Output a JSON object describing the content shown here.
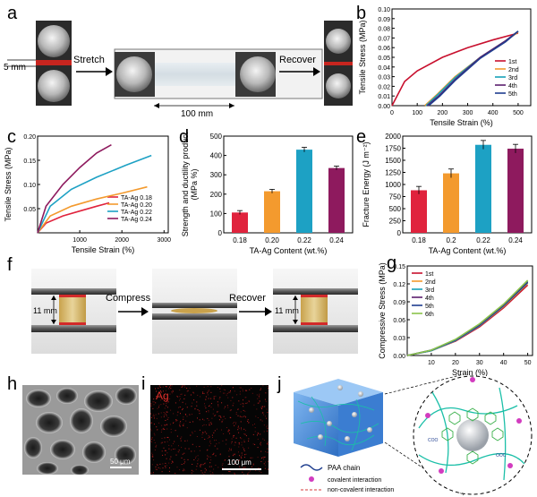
{
  "panel_labels": [
    "a",
    "b",
    "c",
    "d",
    "e",
    "f",
    "g",
    "h",
    "i",
    "j"
  ],
  "panel_a": {
    "stretch_label": "Stretch",
    "recover_label": "Recover",
    "thickness_label": "5 mm",
    "length_label": "100 mm"
  },
  "panel_f": {
    "compress_label": "Compress",
    "recover_label": "Recover",
    "height_label_1": "11 mm",
    "height_label_2": "11 mm"
  },
  "panel_h": {
    "scale_bar": "50 μm"
  },
  "panel_i": {
    "element_label": "Ag",
    "scale_bar": "100 μm"
  },
  "panel_j": {
    "legend": [
      {
        "label": "PAA chain",
        "color": "#1f3e8f"
      },
      {
        "label": "covalent interaction",
        "color": "#d23cbf"
      },
      {
        "label": "non-covalent interaction",
        "color": "#d63a3a"
      }
    ],
    "chain_label": "COO",
    "chain_label_alt": "OOC"
  },
  "chart_data": [
    {
      "id": "b",
      "type": "line",
      "xlabel": "Tensile Strain (%)",
      "ylabel": "Tensile Stress (MPa)",
      "xlim": [
        0,
        550
      ],
      "ylim": [
        0,
        0.1
      ],
      "xticks": [
        0,
        100,
        200,
        300,
        400,
        500
      ],
      "yticks": [
        0.0,
        0.01,
        0.02,
        0.03,
        0.04,
        0.05,
        0.06,
        0.07,
        0.08,
        0.09,
        0.1
      ],
      "legend_position": "bottom-right",
      "series": [
        {
          "name": "1st",
          "color": "#c8102e",
          "x": [
            0,
            50,
            100,
            200,
            300,
            400,
            500
          ],
          "y": [
            0,
            0.025,
            0.036,
            0.05,
            0.06,
            0.068,
            0.075
          ]
        },
        {
          "name": "2nd",
          "color": "#f39a2e",
          "x": [
            130,
            180,
            250,
            350,
            450,
            500
          ],
          "y": [
            0,
            0.012,
            0.03,
            0.05,
            0.067,
            0.076
          ]
        },
        {
          "name": "3rd",
          "color": "#17a2b8",
          "x": [
            135,
            180,
            250,
            350,
            450,
            500
          ],
          "y": [
            0,
            0.011,
            0.029,
            0.05,
            0.067,
            0.077
          ]
        },
        {
          "name": "4th",
          "color": "#5b1f6e",
          "x": [
            140,
            185,
            250,
            350,
            450,
            500
          ],
          "y": [
            0,
            0.01,
            0.027,
            0.05,
            0.067,
            0.077
          ]
        },
        {
          "name": "5th",
          "color": "#1f3e8f",
          "x": [
            145,
            190,
            250,
            350,
            450,
            500
          ],
          "y": [
            0,
            0.01,
            0.026,
            0.049,
            0.066,
            0.077
          ]
        }
      ]
    },
    {
      "id": "c",
      "type": "line",
      "xlabel": "Tensile Strain (%)",
      "ylabel": "Tensile Stress (MPa)",
      "xlim": [
        0,
        3100
      ],
      "ylim": [
        0,
        0.2
      ],
      "xticks": [
        1000,
        2000,
        3000
      ],
      "yticks": [
        0.05,
        0.1,
        0.15,
        0.2
      ],
      "legend_position": "bottom-right",
      "series": [
        {
          "name": "TA-Ag 0.18",
          "color": "#e0233d",
          "x": [
            0,
            200,
            600,
            1000,
            1400,
            1700
          ],
          "y": [
            0,
            0.02,
            0.035,
            0.045,
            0.055,
            0.062
          ]
        },
        {
          "name": "TA-Ag 0.20",
          "color": "#f39a2e",
          "x": [
            0,
            300,
            800,
            1400,
            2000,
            2600
          ],
          "y": [
            0,
            0.035,
            0.055,
            0.07,
            0.082,
            0.095
          ]
        },
        {
          "name": "TA-Ag 0.22",
          "color": "#1da1c4",
          "x": [
            0,
            300,
            800,
            1400,
            2100,
            2700
          ],
          "y": [
            0,
            0.055,
            0.09,
            0.115,
            0.14,
            0.16
          ]
        },
        {
          "name": "TA-Ag 0.24",
          "color": "#8e1a5e",
          "x": [
            0,
            200,
            600,
            1000,
            1400,
            1750
          ],
          "y": [
            0,
            0.055,
            0.1,
            0.135,
            0.165,
            0.182
          ]
        }
      ]
    },
    {
      "id": "d",
      "type": "bar",
      "xlabel": "TA-Ag Content (wt.%)",
      "ylabel": "Strength and ductility product (MPa %)",
      "ylim": [
        0,
        500
      ],
      "yticks": [
        0,
        100,
        200,
        300,
        400,
        500
      ],
      "categories": [
        "0.18",
        "0.20",
        "0.22",
        "0.24"
      ],
      "values": [
        105,
        215,
        430,
        335
      ],
      "errors": [
        10,
        10,
        12,
        10
      ],
      "colors": [
        "#e0233d",
        "#f39a2e",
        "#1da1c4",
        "#8e1a5e"
      ]
    },
    {
      "id": "e",
      "type": "bar",
      "xlabel": "TA-Ag Content (wt.%)",
      "ylabel": "Fracture Energy (J m⁻²)",
      "ylim": [
        0,
        2000
      ],
      "yticks": [
        0,
        250,
        500,
        750,
        1000,
        1250,
        1500,
        1750,
        2000
      ],
      "categories": [
        "0.18",
        "0.2",
        "0.22",
        "0.24"
      ],
      "values": [
        880,
        1230,
        1820,
        1740
      ],
      "errors": [
        80,
        90,
        90,
        90
      ],
      "colors": [
        "#e0233d",
        "#f39a2e",
        "#1da1c4",
        "#8e1a5e"
      ]
    },
    {
      "id": "g",
      "type": "line",
      "xlabel": "Strain (%)",
      "ylabel": "Compressive Stress (MPa)",
      "xlim": [
        0,
        52
      ],
      "ylim": [
        0,
        0.15
      ],
      "xticks": [
        10,
        20,
        30,
        40,
        50
      ],
      "yticks": [
        0.0,
        0.03,
        0.06,
        0.09,
        0.12,
        0.15
      ],
      "legend_position": "top-left",
      "series": [
        {
          "name": "1st",
          "color": "#c8102e",
          "x": [
            0,
            10,
            20,
            30,
            40,
            50
          ],
          "y": [
            0,
            0.008,
            0.024,
            0.048,
            0.08,
            0.118
          ]
        },
        {
          "name": "2nd",
          "color": "#f39a2e",
          "x": [
            0,
            10,
            20,
            30,
            40,
            50
          ],
          "y": [
            0,
            0.008,
            0.025,
            0.05,
            0.082,
            0.121
          ]
        },
        {
          "name": "3rd",
          "color": "#17a2b8",
          "x": [
            0,
            10,
            20,
            30,
            40,
            50
          ],
          "y": [
            0,
            0.008,
            0.025,
            0.05,
            0.083,
            0.122
          ]
        },
        {
          "name": "4th",
          "color": "#5b1f6e",
          "x": [
            0,
            10,
            20,
            30,
            40,
            50
          ],
          "y": [
            0,
            0.009,
            0.026,
            0.051,
            0.084,
            0.123
          ]
        },
        {
          "name": "5th",
          "color": "#1f3e8f",
          "x": [
            0,
            10,
            20,
            30,
            40,
            50
          ],
          "y": [
            0,
            0.009,
            0.026,
            0.052,
            0.085,
            0.124
          ]
        },
        {
          "name": "6th",
          "color": "#8bc34a",
          "x": [
            0,
            10,
            20,
            30,
            40,
            50
          ],
          "y": [
            0,
            0.009,
            0.027,
            0.053,
            0.086,
            0.126
          ]
        }
      ]
    }
  ]
}
